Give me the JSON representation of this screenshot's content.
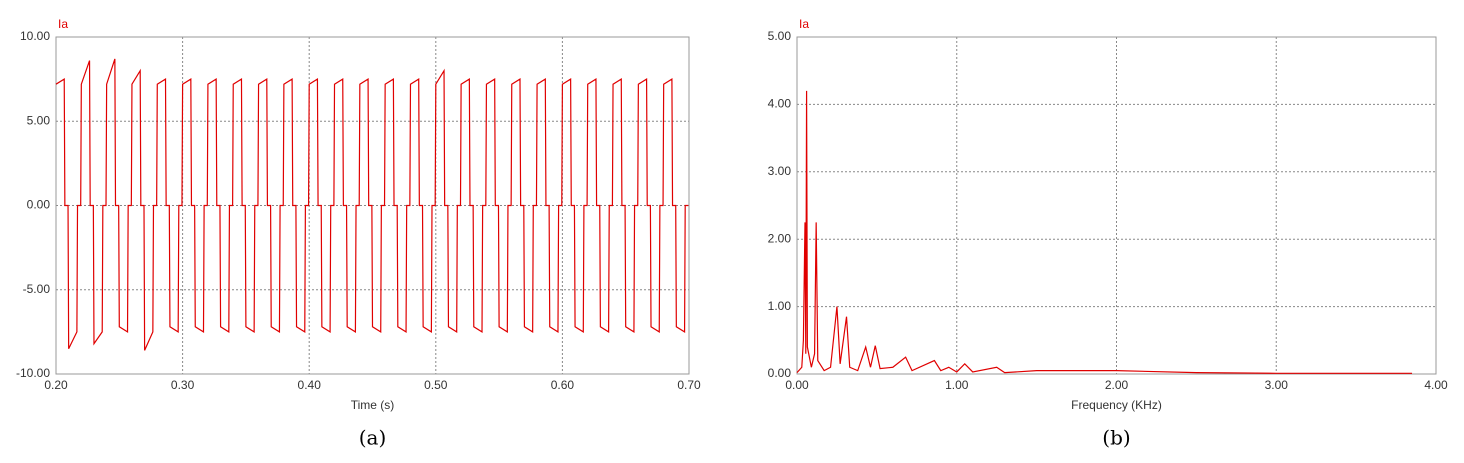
{
  "chart_data": [
    {
      "type": "line",
      "series_label_pos": "top-left",
      "xlabel": "Time (s)",
      "caption": "(a)",
      "grid": true,
      "xlim": [
        0.2,
        0.7
      ],
      "xticks": [
        {
          "value": 0.2,
          "label": "0.20"
        },
        {
          "value": 0.3,
          "label": "0.30"
        },
        {
          "value": 0.4,
          "label": "0.40"
        },
        {
          "value": 0.5,
          "label": "0.50"
        },
        {
          "value": 0.6,
          "label": "0.60"
        },
        {
          "value": 0.7,
          "label": "0.70"
        }
      ],
      "ylim": [
        -10,
        10
      ],
      "yticks": [
        {
          "value": -10,
          "label": "-10.00"
        },
        {
          "value": -5,
          "label": "-5.00"
        },
        {
          "value": 0,
          "label": "0.00"
        },
        {
          "value": 5,
          "label": "5.00"
        },
        {
          "value": 10,
          "label": "10.00"
        }
      ],
      "x": [
        0.2,
        0.2065,
        0.207,
        0.2095,
        0.21,
        0.2165,
        0.217,
        0.2195,
        0.22,
        0.2265,
        0.227,
        0.2295,
        0.23,
        0.2365,
        0.237,
        0.2395,
        0.24,
        0.2465,
        0.247,
        0.2495,
        0.25,
        0.2565,
        0.257,
        0.2595,
        0.26,
        0.2665,
        0.267,
        0.2695,
        0.27,
        0.2765,
        0.277,
        0.2795,
        0.28,
        0.2865,
        0.287,
        0.2895,
        0.29,
        0.2965,
        0.297,
        0.2995,
        0.3,
        0.3065,
        0.307,
        0.3095,
        0.31,
        0.3165,
        0.317,
        0.3195,
        0.32,
        0.3265,
        0.327,
        0.3295,
        0.33,
        0.3365,
        0.337,
        0.3395,
        0.34,
        0.3465,
        0.347,
        0.3495,
        0.35,
        0.3565,
        0.357,
        0.3595,
        0.36,
        0.3665,
        0.367,
        0.3695,
        0.37,
        0.3765,
        0.377,
        0.3795,
        0.38,
        0.3865,
        0.387,
        0.3895,
        0.39,
        0.3965,
        0.397,
        0.3995,
        0.4,
        0.4065,
        0.407,
        0.4095,
        0.41,
        0.4165,
        0.417,
        0.4195,
        0.42,
        0.4265,
        0.427,
        0.4295,
        0.43,
        0.4365,
        0.437,
        0.4395,
        0.44,
        0.4465,
        0.447,
        0.4495,
        0.45,
        0.4565,
        0.457,
        0.4595,
        0.46,
        0.4665,
        0.467,
        0.4695,
        0.47,
        0.4765,
        0.477,
        0.4795,
        0.48,
        0.4865,
        0.487,
        0.4895,
        0.49,
        0.4965,
        0.497,
        0.4995,
        0.5,
        0.5065,
        0.507,
        0.5095,
        0.51,
        0.5165,
        0.517,
        0.5195,
        0.52,
        0.5265,
        0.527,
        0.5295,
        0.53,
        0.5365,
        0.537,
        0.5395,
        0.54,
        0.5465,
        0.547,
        0.5495,
        0.55,
        0.5565,
        0.557,
        0.5595,
        0.56,
        0.5665,
        0.567,
        0.5695,
        0.57,
        0.5765,
        0.577,
        0.5795,
        0.58,
        0.5865,
        0.587,
        0.5895,
        0.59,
        0.5965,
        0.597,
        0.5995,
        0.6,
        0.6065,
        0.607,
        0.6095,
        0.61,
        0.6165,
        0.617,
        0.6195,
        0.62,
        0.6265,
        0.627,
        0.6295,
        0.63,
        0.6365,
        0.637,
        0.6395,
        0.64,
        0.6465,
        0.647,
        0.6495,
        0.65,
        0.6565,
        0.657,
        0.6595,
        0.66,
        0.6665,
        0.667,
        0.6695,
        0.67,
        0.6765,
        0.677,
        0.6795,
        0.68,
        0.6865,
        0.687,
        0.6895,
        0.69,
        0.6965,
        0.697,
        0.6995
      ],
      "series": [
        {
          "name": "Ia",
          "color": "#e00000",
          "values": [
            7.2,
            7.5,
            0,
            0,
            -8.5,
            -7.5,
            0,
            0,
            7.2,
            8.6,
            0,
            0,
            -8.2,
            -7.5,
            0,
            0,
            7.2,
            8.7,
            0,
            0,
            -7.2,
            -7.5,
            0,
            0,
            7.2,
            8.0,
            0,
            0,
            -8.6,
            -7.5,
            0,
            0,
            7.2,
            7.5,
            0,
            0,
            -7.2,
            -7.5,
            0,
            0,
            7.2,
            7.5,
            0,
            0,
            -7.2,
            -7.5,
            0,
            0,
            7.2,
            7.5,
            0,
            0,
            -7.2,
            -7.5,
            0,
            0,
            7.2,
            7.5,
            0,
            0,
            -7.2,
            -7.5,
            0,
            0,
            7.2,
            7.5,
            0,
            0,
            -7.2,
            -7.5,
            0,
            0,
            7.2,
            7.5,
            0,
            0,
            -7.2,
            -7.5,
            0,
            0,
            7.2,
            7.5,
            0,
            0,
            -7.2,
            -7.5,
            0,
            0,
            7.2,
            7.5,
            0,
            0,
            -7.2,
            -7.5,
            0,
            0,
            7.2,
            7.5,
            0,
            0,
            -7.2,
            -7.5,
            0,
            0,
            7.2,
            7.5,
            0,
            0,
            -7.2,
            -7.5,
            0,
            0,
            7.2,
            7.5,
            0,
            0,
            -7.2,
            -7.5,
            0,
            0,
            7.2,
            8.0,
            0,
            0,
            -7.2,
            -7.5,
            0,
            0,
            7.2,
            7.5,
            0,
            0,
            -7.2,
            -7.5,
            0,
            0,
            7.2,
            7.5,
            0,
            0,
            -7.2,
            -7.5,
            0,
            0,
            7.2,
            7.5,
            0,
            0,
            -7.2,
            -7.5,
            0,
            0,
            7.2,
            7.5,
            0,
            0,
            -7.2,
            -7.5,
            0,
            0,
            7.2,
            7.5,
            0,
            0,
            -7.2,
            -7.5,
            0,
            0,
            7.2,
            7.5,
            0,
            0,
            -7.2,
            -7.5,
            0,
            0,
            7.2,
            7.5,
            0,
            0,
            -7.2,
            -7.5,
            0,
            0,
            7.2,
            7.5,
            0,
            0,
            -7.2,
            -7.5,
            0,
            0,
            7.2,
            7.5,
            0,
            0,
            -7.2,
            -7.5,
            0,
            0
          ]
        }
      ]
    },
    {
      "type": "line",
      "series_label_pos": "top-left",
      "xlabel": "Frequency (KHz)",
      "caption": "(b)",
      "grid": true,
      "xlim": [
        0,
        4
      ],
      "xticks": [
        {
          "value": 0,
          "label": "0.00"
        },
        {
          "value": 1,
          "label": "1.00"
        },
        {
          "value": 2,
          "label": "2.00"
        },
        {
          "value": 3,
          "label": "3.00"
        },
        {
          "value": 4,
          "label": "4.00"
        }
      ],
      "ylim": [
        0,
        5
      ],
      "yticks": [
        {
          "value": 0,
          "label": "0.00"
        },
        {
          "value": 1,
          "label": "1.00"
        },
        {
          "value": 2,
          "label": "2.00"
        },
        {
          "value": 3,
          "label": "3.00"
        },
        {
          "value": 4,
          "label": "4.00"
        },
        {
          "value": 5,
          "label": "5.00"
        }
      ],
      "x": [
        0,
        0.03,
        0.04,
        0.05,
        0.055,
        0.06,
        0.065,
        0.09,
        0.11,
        0.12,
        0.13,
        0.17,
        0.21,
        0.25,
        0.27,
        0.31,
        0.33,
        0.38,
        0.43,
        0.46,
        0.49,
        0.52,
        0.6,
        0.68,
        0.72,
        0.86,
        0.9,
        0.95,
        1.0,
        1.05,
        1.1,
        1.25,
        1.3,
        1.5,
        2.0,
        2.5,
        3.0,
        3.85
      ],
      "series": [
        {
          "name": "Ia",
          "color": "#e00000",
          "values": [
            0.02,
            0.1,
            0.5,
            2.25,
            0.3,
            4.2,
            0.4,
            0.1,
            0.3,
            2.25,
            0.2,
            0.05,
            0.1,
            1.0,
            0.15,
            0.85,
            0.1,
            0.05,
            0.4,
            0.1,
            0.42,
            0.08,
            0.1,
            0.25,
            0.05,
            0.2,
            0.05,
            0.1,
            0.03,
            0.15,
            0.03,
            0.1,
            0.02,
            0.05,
            0.05,
            0.02,
            0.01,
            0.01
          ]
        }
      ]
    }
  ]
}
